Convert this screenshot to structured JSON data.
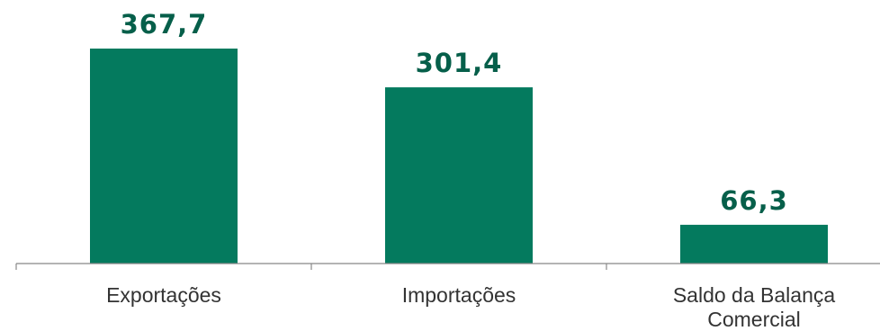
{
  "chart_data": {
    "type": "bar",
    "categories": [
      [
        "Exportações"
      ],
      [
        "Importações"
      ],
      [
        "Saldo da Balança",
        "Comercial"
      ]
    ],
    "values": [
      367.7,
      301.4,
      66.3
    ],
    "data_labels": [
      "367,7",
      "301,4",
      "66,3"
    ],
    "title": "",
    "xlabel": "",
    "ylabel": "",
    "ylim": [
      0,
      400
    ],
    "grid": false,
    "legend": "none",
    "colors": {
      "bar": "#047a5e",
      "value_label": "#065f4a",
      "axis": "#888888",
      "category_label": "#333333"
    }
  }
}
